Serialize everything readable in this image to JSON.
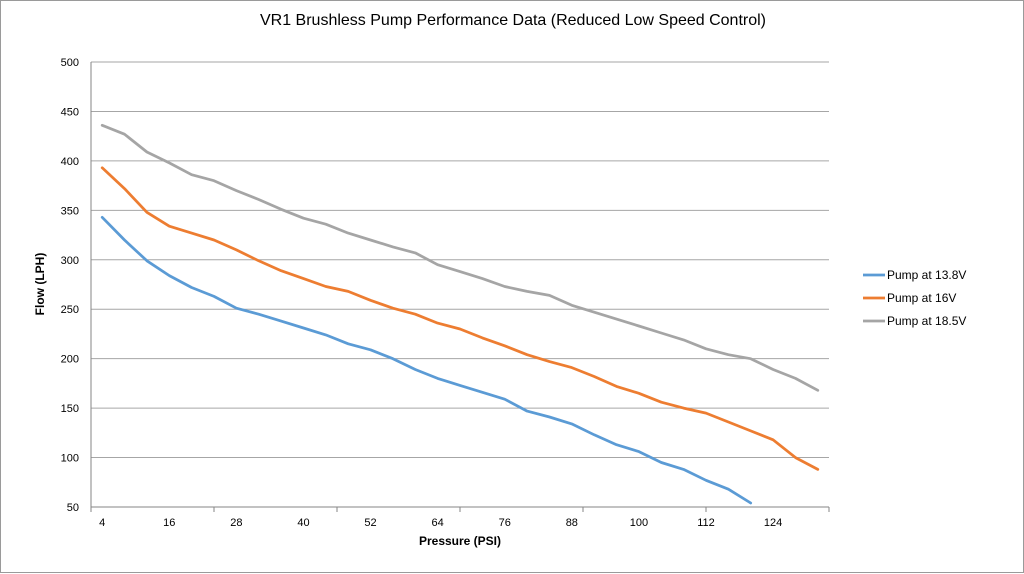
{
  "chart_data": {
    "type": "line",
    "title": "VR1 Brushless Pump Performance Data (Reduced Low Speed   Control)",
    "xlabel": "Pressure (PSI)",
    "ylabel": "Flow (LPH)",
    "ylim": [
      50,
      500
    ],
    "y_ticks": [
      "50",
      "100",
      "150",
      "200",
      "250",
      "300",
      "350",
      "400",
      "450",
      "500"
    ],
    "x_ticks": [
      "4",
      "16",
      "28",
      "40",
      "52",
      "64",
      "76",
      "88",
      "100",
      "112",
      "124"
    ],
    "x_tick_values": [
      4,
      16,
      28,
      40,
      52,
      64,
      76,
      88,
      100,
      112,
      124
    ],
    "xlim": [
      2,
      134
    ],
    "grid": true,
    "legend_position": "right",
    "series": [
      {
        "name": "Pump at 13.8V",
        "color": "#5b9bd5",
        "x": [
          4,
          8,
          12,
          16,
          20,
          24,
          28,
          32,
          36,
          40,
          44,
          48,
          52,
          56,
          60,
          64,
          68,
          72,
          76,
          80,
          84,
          88,
          92,
          96,
          100,
          104,
          108,
          112,
          116,
          120
        ],
        "values": [
          343,
          320,
          299,
          284,
          272,
          263,
          251,
          245,
          238,
          231,
          224,
          215,
          209,
          200,
          189,
          180,
          173,
          166,
          159,
          147,
          141,
          134,
          123,
          113,
          106,
          95,
          88,
          77,
          68,
          54
        ]
      },
      {
        "name": "Pump at 16V",
        "color": "#ed7d31",
        "x": [
          4,
          8,
          12,
          16,
          20,
          24,
          28,
          32,
          36,
          40,
          44,
          48,
          52,
          56,
          60,
          64,
          68,
          72,
          76,
          80,
          84,
          88,
          92,
          96,
          100,
          104,
          108,
          112,
          116,
          120,
          124,
          128,
          132
        ],
        "values": [
          393,
          372,
          348,
          334,
          327,
          320,
          310,
          299,
          289,
          281,
          273,
          268,
          259,
          251,
          245,
          236,
          230,
          221,
          213,
          204,
          197,
          191,
          182,
          172,
          165,
          156,
          150,
          145,
          136,
          127,
          118,
          100,
          88
        ]
      },
      {
        "name": "Pump at 18.5V",
        "color": "#a5a5a5",
        "x": [
          4,
          8,
          12,
          16,
          20,
          24,
          28,
          32,
          36,
          40,
          44,
          48,
          52,
          56,
          60,
          64,
          68,
          72,
          76,
          80,
          84,
          88,
          92,
          96,
          100,
          104,
          108,
          112,
          116,
          120,
          124,
          128,
          132
        ],
        "values": [
          436,
          427,
          409,
          398,
          386,
          380,
          370,
          361,
          351,
          342,
          336,
          327,
          320,
          313,
          307,
          295,
          288,
          281,
          273,
          268,
          264,
          254,
          247,
          240,
          233,
          226,
          219,
          210,
          204,
          200,
          189,
          180,
          168
        ]
      }
    ]
  }
}
